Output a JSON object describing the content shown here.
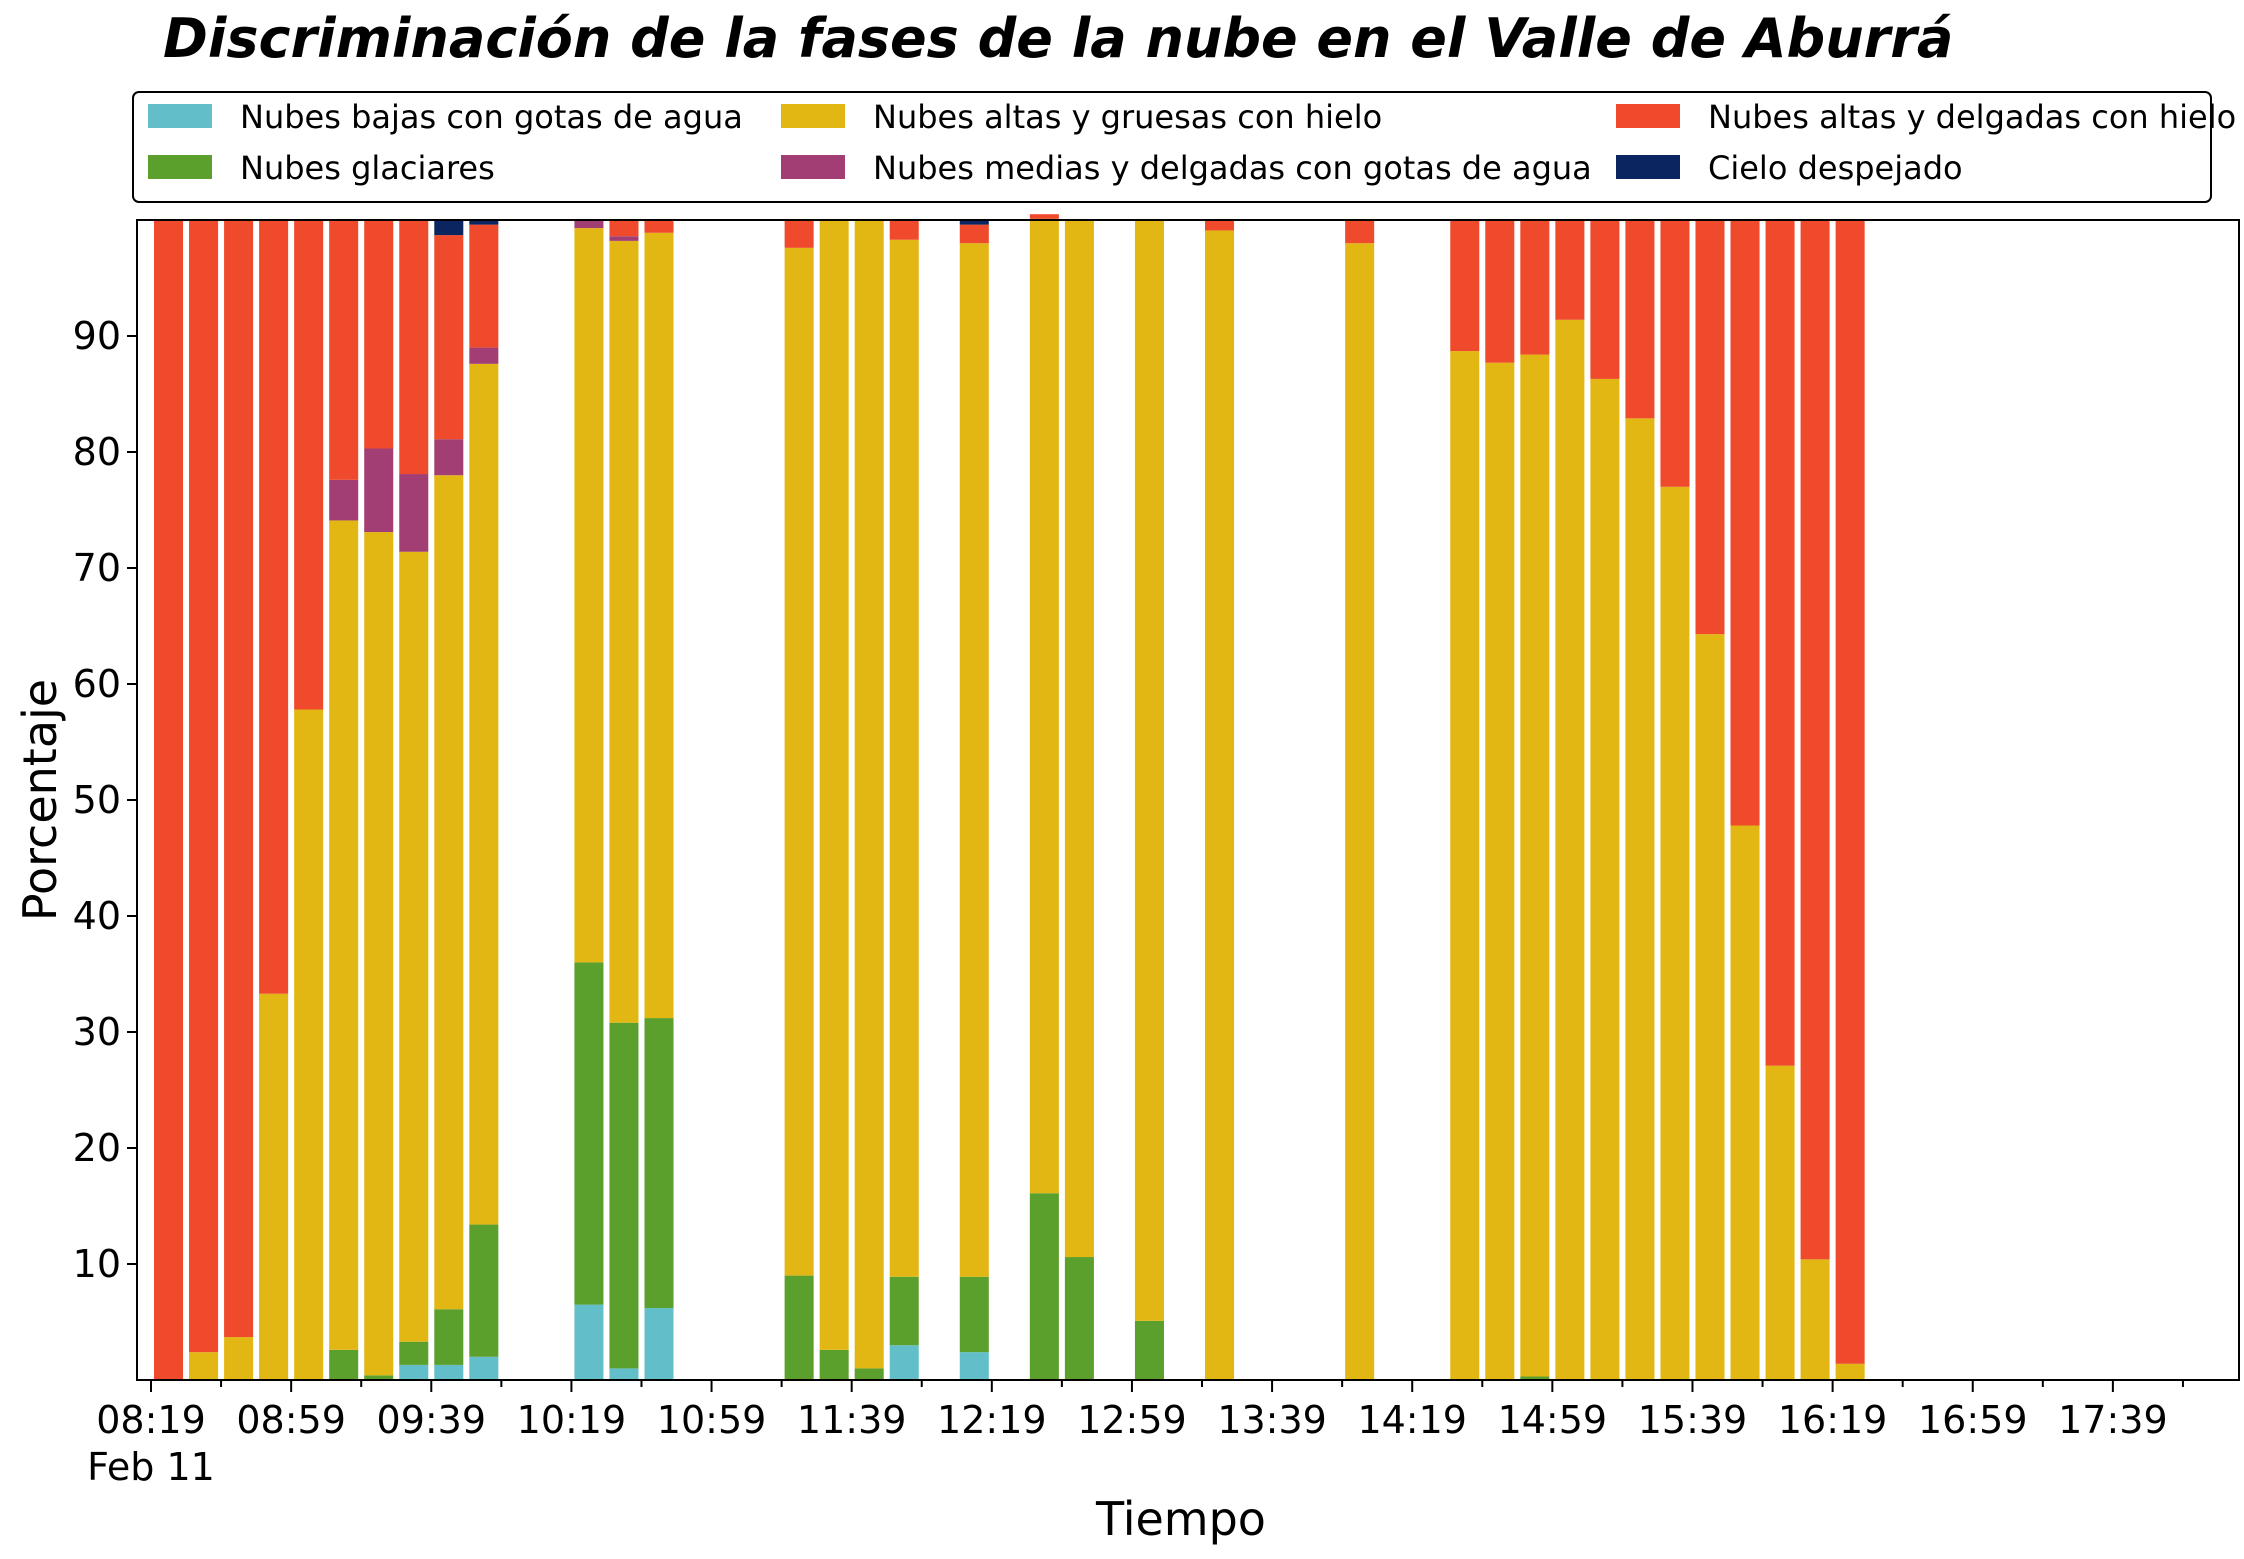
{
  "chart_data": {
    "type": "bar",
    "stacked": true,
    "title": "Discriminación de la fases de la nube en el Valle de Aburrá",
    "xlabel": "Tiempo",
    "ylabel": "Porcentaje",
    "ylim": [
      0,
      100
    ],
    "xlim": [
      "08:15",
      "18:15"
    ],
    "x_tick_labels": [
      "08:19",
      "08:59",
      "09:39",
      "10:19",
      "10:59",
      "11:39",
      "12:19",
      "12:59",
      "13:39",
      "14:19",
      "14:59",
      "15:39",
      "16:19",
      "16:59",
      "17:39"
    ],
    "x_tick_date_label": "Feb 11",
    "y_ticks": [
      10,
      20,
      30,
      40,
      50,
      60,
      70,
      80,
      90
    ],
    "legend_position": "top, outside plot",
    "series": [
      {
        "name": "Nubes bajas con gotas de agua",
        "color": "#62bfca"
      },
      {
        "name": "Nubes glaciares",
        "color": "#5b9f2c"
      },
      {
        "name": "Nubes altas y gruesas con hielo",
        "color": "#e2b714"
      },
      {
        "name": "Nubes medias y delgadas con gotas de agua",
        "color": "#a23e73"
      },
      {
        "name": "Nubes altas y delgadas con hielo",
        "color": "#ee4a2b"
      },
      {
        "name": "Cielo despejado",
        "color": "#0b2560"
      }
    ],
    "bars": [
      {
        "time": "08:24",
        "values": [
          0,
          0,
          0,
          0,
          100,
          0
        ]
      },
      {
        "time": "08:34",
        "values": [
          0,
          0,
          2.4,
          0,
          97.6,
          0
        ]
      },
      {
        "time": "08:44",
        "values": [
          0,
          0,
          3.7,
          0,
          96.3,
          0
        ]
      },
      {
        "time": "08:54",
        "values": [
          0,
          0,
          33.3,
          0,
          66.7,
          0
        ]
      },
      {
        "time": "09:04",
        "values": [
          0,
          0,
          57.8,
          0,
          42.2,
          0
        ]
      },
      {
        "time": "09:14",
        "values": [
          0,
          2.6,
          71.5,
          3.5,
          22.4,
          0
        ]
      },
      {
        "time": "09:24",
        "values": [
          0,
          0.4,
          72.7,
          7.2,
          19.7,
          0
        ]
      },
      {
        "time": "09:34",
        "values": [
          1.3,
          2.0,
          68.1,
          6.7,
          21.9,
          0
        ]
      },
      {
        "time": "09:44",
        "values": [
          1.3,
          4.8,
          71.9,
          3.1,
          17.6,
          1.3
        ]
      },
      {
        "time": "09:54",
        "values": [
          2.0,
          11.4,
          74.2,
          1.4,
          10.6,
          0.4
        ]
      },
      {
        "time": "10:24",
        "values": [
          6.5,
          29.5,
          63.3,
          0.7,
          0,
          0
        ]
      },
      {
        "time": "10:34",
        "values": [
          1.0,
          29.8,
          67.4,
          0.4,
          1.4,
          0
        ]
      },
      {
        "time": "10:44",
        "values": [
          6.2,
          25.0,
          67.7,
          0,
          1.1,
          0
        ]
      },
      {
        "time": "11:24",
        "values": [
          0,
          9.0,
          88.6,
          0,
          2.4,
          0
        ]
      },
      {
        "time": "11:34",
        "values": [
          0,
          2.6,
          97.4,
          0,
          0,
          0
        ]
      },
      {
        "time": "11:44",
        "values": [
          0,
          1.0,
          99.0,
          0,
          0,
          0
        ]
      },
      {
        "time": "11:54",
        "values": [
          3.0,
          5.9,
          89.4,
          0,
          1.7,
          0
        ]
      },
      {
        "time": "12:14",
        "values": [
          2.4,
          6.5,
          89.1,
          0,
          1.6,
          0.4
        ]
      },
      {
        "time": "12:34",
        "values": [
          0,
          16.1,
          84.0,
          0,
          0.4,
          0
        ]
      },
      {
        "time": "12:44",
        "values": [
          0,
          10.6,
          89.4,
          0,
          0,
          0
        ]
      },
      {
        "time": "13:04",
        "values": [
          0,
          5.1,
          94.9,
          0,
          0,
          0
        ]
      },
      {
        "time": "13:24",
        "values": [
          0,
          0,
          99.1,
          0,
          0.9,
          0
        ]
      },
      {
        "time": "14:04",
        "values": [
          0,
          0,
          98.0,
          0,
          2.0,
          0
        ]
      },
      {
        "time": "14:34",
        "values": [
          0,
          0,
          88.7,
          0,
          11.3,
          0
        ]
      },
      {
        "time": "14:44",
        "values": [
          0,
          0,
          87.7,
          0,
          12.3,
          0
        ]
      },
      {
        "time": "14:54",
        "values": [
          0,
          0.3,
          88.1,
          0,
          11.6,
          0
        ]
      },
      {
        "time": "15:04",
        "values": [
          0,
          0,
          91.4,
          0,
          8.6,
          0
        ]
      },
      {
        "time": "15:14",
        "values": [
          0,
          0,
          86.3,
          0,
          13.7,
          0
        ]
      },
      {
        "time": "15:24",
        "values": [
          0,
          0,
          82.9,
          0,
          17.1,
          0
        ]
      },
      {
        "time": "15:34",
        "values": [
          0,
          0,
          77.0,
          0,
          23.0,
          0
        ]
      },
      {
        "time": "15:44",
        "values": [
          0,
          0,
          64.3,
          0,
          35.7,
          0
        ]
      },
      {
        "time": "15:54",
        "values": [
          0,
          0,
          47.8,
          0,
          52.2,
          0
        ]
      },
      {
        "time": "16:04",
        "values": [
          0,
          0,
          27.1,
          0,
          72.9,
          0
        ]
      },
      {
        "time": "16:14",
        "values": [
          0,
          0,
          10.4,
          0,
          89.6,
          0
        ]
      },
      {
        "time": "16:24",
        "values": [
          0,
          0,
          1.4,
          0,
          98.6,
          0
        ]
      }
    ]
  }
}
